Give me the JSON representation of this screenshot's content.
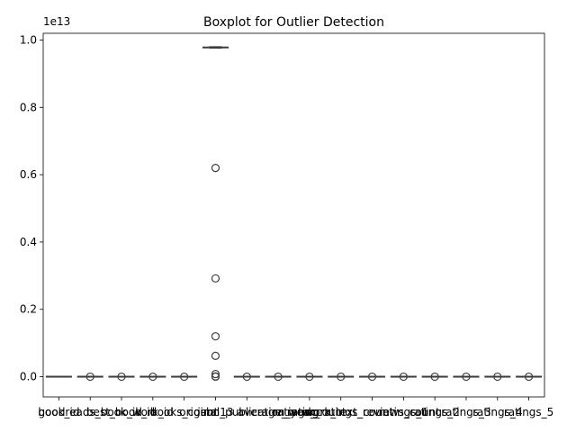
{
  "chart_data": {
    "type": "boxplot",
    "title": "Boxplot for Outlier Detection",
    "y_offset_label": "1e13",
    "y_tick_labels": [
      "0.0",
      "0.2",
      "0.4",
      "0.6",
      "0.8",
      "1.0"
    ],
    "y_ticks": [
      0.0,
      0.2,
      0.4,
      0.6,
      0.8,
      1.0
    ],
    "ylim": [
      -0.06,
      1.02
    ],
    "y_unit_exponent": 13,
    "grid": false,
    "box_color": "#4c72b0",
    "outlier_edge_color": "#3d3d3d",
    "series": [
      {
        "label": "book_id",
        "median": 0.0,
        "q1": 0.0,
        "q3": 0.0,
        "whisker_low": 0.0,
        "whisker_high": 0.0,
        "outliers": []
      },
      {
        "label": "goodreads_book_id",
        "median": 0.0,
        "q1": 0.0,
        "q3": 0.0,
        "whisker_low": 0.0,
        "whisker_high": 0.0,
        "outliers": [
          0.0
        ]
      },
      {
        "label": "best_book_id",
        "median": 0.0,
        "q1": 0.0,
        "q3": 0.0,
        "whisker_low": 0.0,
        "whisker_high": 0.0,
        "outliers": [
          0.0
        ]
      },
      {
        "label": "work_id",
        "median": 0.0,
        "q1": 0.0,
        "q3": 0.0,
        "whisker_low": 0.0,
        "whisker_high": 0.0,
        "outliers": [
          0.0
        ]
      },
      {
        "label": "books_count",
        "median": 0.0,
        "q1": 0.0,
        "q3": 0.0,
        "whisker_low": 0.0,
        "whisker_high": 0.0,
        "outliers": [
          0.0
        ]
      },
      {
        "label": "isbn13",
        "median": 0.978,
        "q1": 0.978,
        "q3": 0.978,
        "whisker_low": 0.976,
        "whisker_high": 0.98,
        "outliers": [
          0.62,
          0.292,
          0.12,
          0.062,
          0.008,
          0.001,
          0.0
        ]
      },
      {
        "label": "original_publication_year",
        "median": 0.0,
        "q1": 0.0,
        "q3": 0.0,
        "whisker_low": 0.0,
        "whisker_high": 0.0,
        "outliers": [
          0.0
        ]
      },
      {
        "label": "average_rating",
        "median": 0.0,
        "q1": 0.0,
        "q3": 0.0,
        "whisker_low": 0.0,
        "whisker_high": 0.0,
        "outliers": [
          0.0
        ]
      },
      {
        "label": "ratings_count",
        "median": 0.0,
        "q1": 0.0,
        "q3": 0.0,
        "whisker_low": 0.0,
        "whisker_high": 0.0,
        "outliers": [
          0.0
        ]
      },
      {
        "label": "work_ratings_count",
        "median": 0.0,
        "q1": 0.0,
        "q3": 0.0,
        "whisker_low": 0.0,
        "whisker_high": 0.0,
        "outliers": [
          0.0
        ]
      },
      {
        "label": "work_text_reviews_count",
        "median": 0.0,
        "q1": 0.0,
        "q3": 0.0,
        "whisker_low": 0.0,
        "whisker_high": 0.0,
        "outliers": [
          0.0
        ]
      },
      {
        "label": "ratings_1",
        "median": 0.0,
        "q1": 0.0,
        "q3": 0.0,
        "whisker_low": 0.0,
        "whisker_high": 0.0,
        "outliers": [
          0.0
        ]
      },
      {
        "label": "ratings_2",
        "median": 0.0,
        "q1": 0.0,
        "q3": 0.0,
        "whisker_low": 0.0,
        "whisker_high": 0.0,
        "outliers": [
          0.0
        ]
      },
      {
        "label": "ratings_3",
        "median": 0.0,
        "q1": 0.0,
        "q3": 0.0,
        "whisker_low": 0.0,
        "whisker_high": 0.0,
        "outliers": [
          0.0
        ]
      },
      {
        "label": "ratings_4",
        "median": 0.0,
        "q1": 0.0,
        "q3": 0.0,
        "whisker_low": 0.0,
        "whisker_high": 0.0,
        "outliers": [
          0.0
        ]
      },
      {
        "label": "ratings_5",
        "median": 0.0,
        "q1": 0.0,
        "q3": 0.0,
        "whisker_low": 0.0,
        "whisker_high": 0.0,
        "outliers": [
          0.0
        ]
      }
    ]
  }
}
